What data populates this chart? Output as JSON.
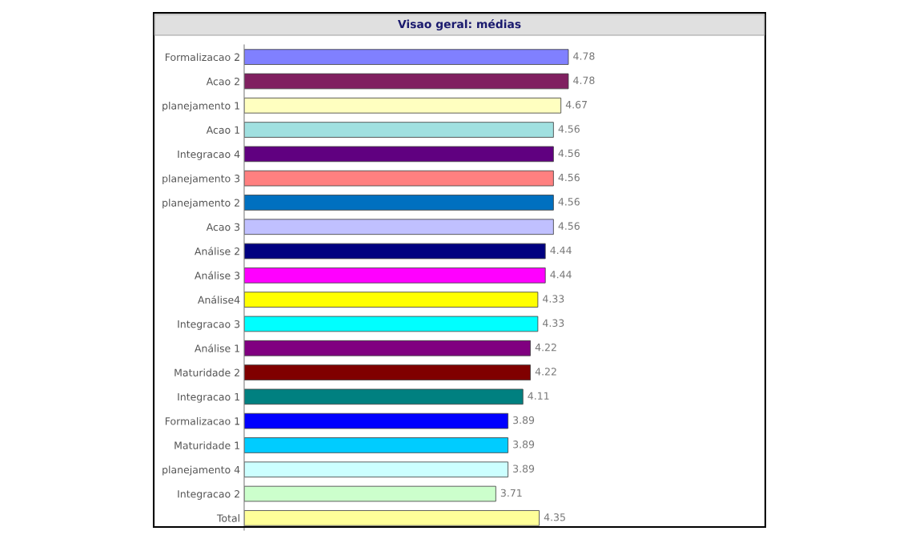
{
  "chart_data": {
    "type": "bar",
    "orientation": "horizontal",
    "title": "Visao geral: médias",
    "data_labels": true,
    "grid": false,
    "legend": false,
    "categories": [
      "Formalizacao 2",
      "Acao 2",
      "planejamento 1",
      "Acao 1",
      "Integracao 4",
      "planejamento 3",
      "planejamento 2",
      "Acao 3",
      "Análise 2",
      "Análise 3",
      "Análise4",
      "Integracao 3",
      "Análise 1",
      "Maturidade 2",
      "Integracao 1",
      "Formalizacao 1",
      "Maturidade 1",
      "planejamento 4",
      "Integracao 2",
      "Total"
    ],
    "values": [
      4.78,
      4.78,
      4.67,
      4.56,
      4.56,
      4.56,
      4.56,
      4.56,
      4.44,
      4.44,
      4.33,
      4.33,
      4.22,
      4.22,
      4.11,
      3.89,
      3.89,
      3.89,
      3.71,
      4.35
    ],
    "colors": [
      "#8080ff",
      "#802060",
      "#ffffc0",
      "#a0e0e0",
      "#600080",
      "#ff8080",
      "#0070c0",
      "#c0c0ff",
      "#000080",
      "#ff00ff",
      "#ffff00",
      "#00ffff",
      "#800080",
      "#800000",
      "#008080",
      "#0000ff",
      "#00ccff",
      "#ccffff",
      "#ccffcc",
      "#ffff99"
    ]
  }
}
